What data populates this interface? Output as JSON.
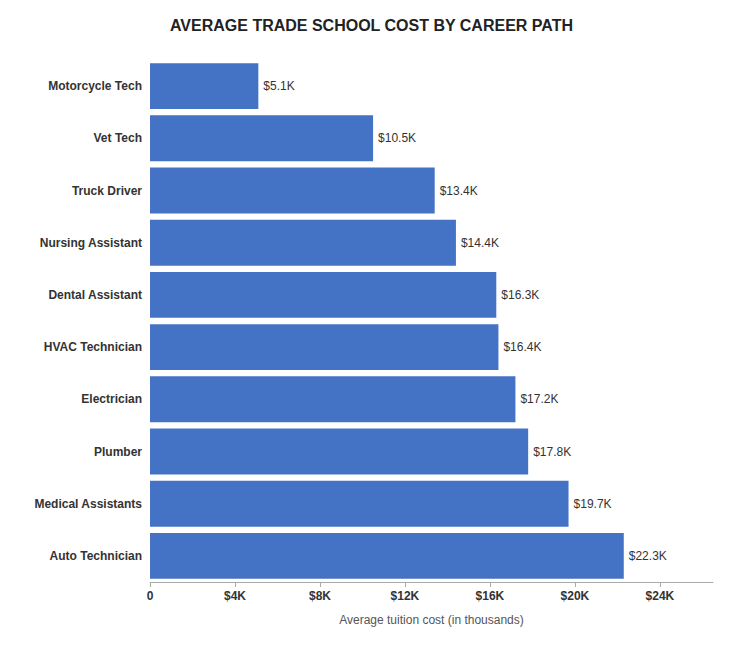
{
  "chart_data": {
    "type": "bar",
    "orientation": "horizontal",
    "title": "AVERAGE TRADE SCHOOL COST BY CAREER PATH",
    "xlabel": "Average tuition cost (in thousands)",
    "categories": [
      "Auto Technician",
      "Medical Assistants",
      "Plumber",
      "Electrician",
      "HVAC Technician",
      "Dental Assistant",
      "Nursing Assistant",
      "Truck Driver",
      "Vet Tech",
      "Motorcycle Tech"
    ],
    "values": [
      22300,
      19700,
      17800,
      17200,
      16400,
      16300,
      14400,
      13400,
      10500,
      5100
    ],
    "value_labels": [
      "$22.3K",
      "$19.7K",
      "$17.8K",
      "$17.2K",
      "$16.4K",
      "$16.3K",
      "$14.4K",
      "$13.4K",
      "$10.5K",
      "$5.1K"
    ],
    "color": "#4472C4",
    "xlim": [
      0,
      26500
    ],
    "xticks": [
      0,
      {
        "value": 4000,
        "label": "$4K"
      },
      {
        "value": 8000,
        "label": "$8K"
      },
      {
        "value": 12000,
        "label": "$12K"
      },
      {
        "value": 16000,
        "label": "$16K"
      },
      {
        "value": 20000,
        "label": "$20K"
      },
      {
        "value": 24000,
        "label": "$24K"
      }
    ],
    "grid": false,
    "data_labels": true
  }
}
